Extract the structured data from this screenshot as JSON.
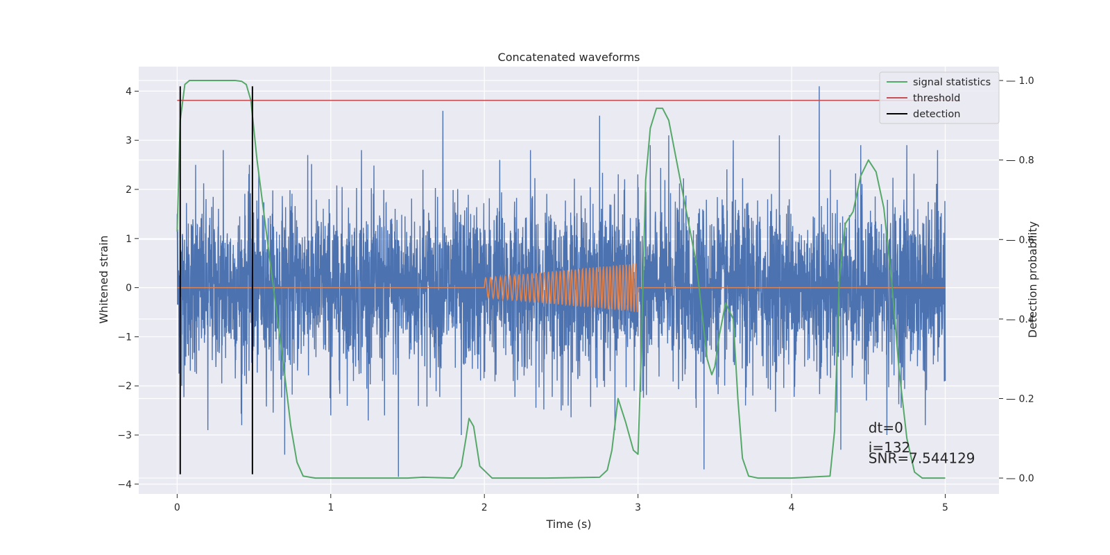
{
  "chart_data": {
    "type": "line",
    "title": "Concatenated waveforms",
    "xlabel": "Time (s)",
    "ylabel": "Whitened strain",
    "y2label": "Detection probability",
    "xlim": [
      -0.25,
      5.35
    ],
    "ylim": [
      -4.2,
      4.5
    ],
    "y2lim": [
      -0.04,
      1.035
    ],
    "x_ticks": [
      0,
      1,
      2,
      3,
      4,
      5
    ],
    "y_ticks": [
      -4,
      -3,
      -2,
      -1,
      0,
      1,
      2,
      3,
      4
    ],
    "y2_ticks": [
      0.0,
      0.2,
      0.4,
      0.6,
      0.8,
      1.0
    ],
    "y2_tick_labels": [
      "0.0",
      "0.2",
      "0.4",
      "0.6",
      "0.8",
      "1.0"
    ],
    "grid": true,
    "legend_position": "top-right",
    "colors": {
      "strain": "#4c72b0",
      "template": "#dd8452",
      "signal_statistics": "#55a868",
      "threshold": "#c44e52",
      "detection": "#000000",
      "background": "#eaeaf2"
    },
    "series": [
      {
        "name": "",
        "axis": "left",
        "kind": "noise",
        "x_range": [
          0,
          5
        ],
        "core_amplitude": 0.85,
        "spike_peaks": [
          [
            0.0,
            1.5
          ],
          [
            0.03,
            -2.0
          ],
          [
            0.12,
            2.5
          ],
          [
            0.2,
            -2.9
          ],
          [
            0.3,
            2.8
          ],
          [
            0.42,
            -2.8
          ],
          [
            0.47,
            2.5
          ],
          [
            0.5,
            -1.2
          ],
          [
            0.7,
            -3.4
          ],
          [
            0.85,
            2.7
          ],
          [
            1.0,
            -2.6
          ],
          [
            1.2,
            2.8
          ],
          [
            1.35,
            -2.6
          ],
          [
            1.44,
            -3.85
          ],
          [
            1.6,
            2.4
          ],
          [
            1.73,
            3.6
          ],
          [
            1.85,
            -3.0
          ],
          [
            2.1,
            2.6
          ],
          [
            2.3,
            2.8
          ],
          [
            2.5,
            -2.5
          ],
          [
            2.75,
            3.5
          ],
          [
            2.85,
            -2.9
          ],
          [
            3.08,
            2.9
          ],
          [
            3.2,
            3.1
          ],
          [
            3.43,
            -3.7
          ],
          [
            3.62,
            3.0
          ],
          [
            3.7,
            -2.4
          ],
          [
            3.92,
            3.1
          ],
          [
            4.18,
            4.1
          ],
          [
            4.32,
            -3.3
          ],
          [
            4.45,
            2.9
          ],
          [
            4.62,
            -3.0
          ],
          [
            4.75,
            2.9
          ],
          [
            4.87,
            -2.8
          ],
          [
            4.95,
            2.8
          ],
          [
            5.0,
            -1.9
          ]
        ]
      },
      {
        "name": "",
        "axis": "left",
        "kind": "chirp",
        "x_range": [
          2,
          3
        ],
        "amplitude_range": [
          0.2,
          0.5
        ],
        "cycles": 40
      },
      {
        "name": "signal statistics",
        "axis": "right",
        "x": [
          0.0,
          0.02,
          0.05,
          0.08,
          0.12,
          0.2,
          0.3,
          0.38,
          0.42,
          0.45,
          0.48,
          0.52,
          0.58,
          0.62,
          0.66,
          0.7,
          0.74,
          0.78,
          0.82,
          0.9,
          1.2,
          1.5,
          1.6,
          1.8,
          1.85,
          1.88,
          1.9,
          1.93,
          1.97,
          2.05,
          2.4,
          2.75,
          2.8,
          2.83,
          2.87,
          2.92,
          2.97,
          3.0,
          3.02,
          3.05,
          3.08,
          3.12,
          3.16,
          3.2,
          3.25,
          3.3,
          3.38,
          3.45,
          3.48,
          3.5,
          3.53,
          3.57,
          3.62,
          3.65,
          3.68,
          3.72,
          3.78,
          4.0,
          4.25,
          4.28,
          4.31,
          4.35,
          4.4,
          4.45,
          4.5,
          4.55,
          4.6,
          4.65,
          4.7,
          4.75,
          4.8,
          4.85,
          5.0
        ],
        "values": [
          0.62,
          0.9,
          0.99,
          1.0,
          1.0,
          1.0,
          1.0,
          1.0,
          0.998,
          0.99,
          0.95,
          0.8,
          0.62,
          0.5,
          0.38,
          0.26,
          0.13,
          0.04,
          0.005,
          0.0,
          0.0,
          0.0,
          0.002,
          0.0,
          0.03,
          0.1,
          0.15,
          0.13,
          0.03,
          0.0,
          0.0,
          0.002,
          0.02,
          0.07,
          0.2,
          0.14,
          0.07,
          0.06,
          0.3,
          0.75,
          0.88,
          0.93,
          0.93,
          0.9,
          0.8,
          0.7,
          0.54,
          0.3,
          0.26,
          0.28,
          0.36,
          0.44,
          0.4,
          0.2,
          0.05,
          0.005,
          0.0,
          0.0,
          0.005,
          0.12,
          0.5,
          0.64,
          0.67,
          0.76,
          0.8,
          0.77,
          0.68,
          0.5,
          0.27,
          0.1,
          0.015,
          0.0,
          0.0
        ]
      },
      {
        "name": "threshold",
        "axis": "right",
        "x": [
          0,
          5.1
        ],
        "values": [
          0.95,
          0.95
        ]
      },
      {
        "name": "detection",
        "axis": "left",
        "vertical_lines": [
          0.02,
          0.49
        ],
        "y_range": [
          -3.8,
          4.1
        ]
      }
    ],
    "annotations": [
      {
        "text": "dt=0",
        "x": 4.5,
        "y": -2.95
      },
      {
        "text": "i=132",
        "x": 4.5,
        "y": -3.35
      },
      {
        "text": "SNR=7.544129",
        "x": 4.5,
        "y": -3.57
      }
    ]
  }
}
